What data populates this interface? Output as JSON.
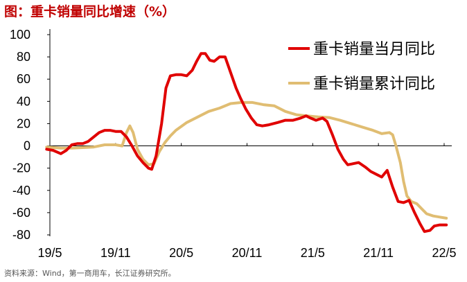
{
  "title": "图：重卡销量同比增速（%）",
  "source": "资料来源：Wind，第一商用车，长江证券研究所。",
  "chart_data": {
    "type": "line",
    "title": "图：重卡销量同比增速（%）",
    "xlabel": "",
    "ylabel": "",
    "ylim": [
      -80,
      100
    ],
    "yticks": [
      100,
      80,
      60,
      40,
      20,
      0,
      -20,
      -40,
      -60,
      -80
    ],
    "xlim": [
      0,
      36
    ],
    "xticks": [
      {
        "label": "19/5",
        "x": 0
      },
      {
        "label": "19/11",
        "x": 6
      },
      {
        "label": "20/5",
        "x": 12
      },
      {
        "label": "20/11",
        "x": 18
      },
      {
        "label": "21/5",
        "x": 24
      },
      {
        "label": "21/11",
        "x": 30
      },
      {
        "label": "22/5",
        "x": 36
      }
    ],
    "grid": false,
    "legend_position": "top-right",
    "series": [
      {
        "name": "重卡销量当月同比",
        "color": "#e00000",
        "points": [
          [
            -0.3,
            -3
          ],
          [
            0.3,
            -4
          ],
          [
            1,
            -7
          ],
          [
            1.5,
            -4
          ],
          [
            2,
            1
          ],
          [
            2.5,
            2
          ],
          [
            3,
            2
          ],
          [
            3.5,
            4
          ],
          [
            4,
            8
          ],
          [
            4.5,
            12
          ],
          [
            5,
            14
          ],
          [
            5.5,
            14
          ],
          [
            6,
            13
          ],
          [
            6.5,
            13
          ],
          [
            7,
            8
          ],
          [
            7.5,
            0
          ],
          [
            8,
            -9
          ],
          [
            8.5,
            -15
          ],
          [
            9,
            -20
          ],
          [
            9.3,
            -21
          ],
          [
            9.7,
            -9
          ],
          [
            10.2,
            20
          ],
          [
            10.6,
            52
          ],
          [
            11,
            63
          ],
          [
            11.5,
            64
          ],
          [
            12,
            64
          ],
          [
            12.5,
            63
          ],
          [
            13,
            68
          ],
          [
            13.4,
            76
          ],
          [
            13.8,
            83
          ],
          [
            14.2,
            83
          ],
          [
            14.6,
            77
          ],
          [
            15,
            76
          ],
          [
            15.5,
            80
          ],
          [
            16,
            80
          ],
          [
            16.5,
            66
          ],
          [
            17,
            52
          ],
          [
            17.4,
            43
          ],
          [
            17.9,
            33
          ],
          [
            18.4,
            25
          ],
          [
            18.9,
            19
          ],
          [
            19.4,
            18
          ],
          [
            20,
            19
          ],
          [
            20.8,
            21
          ],
          [
            21.5,
            23
          ],
          [
            22.2,
            23
          ],
          [
            22.9,
            25
          ],
          [
            23.4,
            27
          ],
          [
            23.8,
            25
          ],
          [
            24.3,
            23
          ],
          [
            24.9,
            25
          ],
          [
            25.3,
            22
          ],
          [
            25.8,
            10
          ],
          [
            26.3,
            -3
          ],
          [
            26.8,
            -12
          ],
          [
            27.2,
            -17
          ],
          [
            27.7,
            -16
          ],
          [
            28.2,
            -15
          ],
          [
            28.8,
            -19
          ],
          [
            29.3,
            -23
          ],
          [
            29.9,
            -26
          ],
          [
            30.3,
            -28
          ],
          [
            30.8,
            -22
          ],
          [
            31.3,
            -37
          ],
          [
            31.8,
            -50
          ],
          [
            32.3,
            -51
          ],
          [
            32.8,
            -49
          ],
          [
            33.3,
            -60
          ],
          [
            33.8,
            -70
          ],
          [
            34.2,
            -77
          ],
          [
            34.7,
            -76
          ],
          [
            35.1,
            -72
          ],
          [
            35.6,
            -71
          ],
          [
            36.2,
            -71
          ]
        ]
      },
      {
        "name": "重卡销量累计同比",
        "color": "#e0bd72",
        "points": [
          [
            -0.3,
            -1
          ],
          [
            1,
            -2
          ],
          [
            2,
            -2
          ],
          [
            3,
            -1.5
          ],
          [
            4,
            -1
          ],
          [
            5,
            1
          ],
          [
            6,
            1
          ],
          [
            6.6,
            0
          ],
          [
            7,
            12
          ],
          [
            7.3,
            18
          ],
          [
            7.6,
            12
          ],
          [
            8,
            -3
          ],
          [
            8.5,
            -12
          ],
          [
            9,
            -17
          ],
          [
            9.5,
            -16
          ],
          [
            10,
            -5
          ],
          [
            10.5,
            3
          ],
          [
            11,
            9
          ],
          [
            11.5,
            14
          ],
          [
            12.5,
            21
          ],
          [
            13.5,
            26
          ],
          [
            14.5,
            31
          ],
          [
            15.5,
            34
          ],
          [
            16.5,
            38
          ],
          [
            17.5,
            39
          ],
          [
            18.5,
            39
          ],
          [
            19.5,
            37
          ],
          [
            20.5,
            36
          ],
          [
            21.5,
            31
          ],
          [
            22.5,
            28
          ],
          [
            23.5,
            27
          ],
          [
            24.5,
            26
          ],
          [
            25.5,
            25.5
          ],
          [
            26.5,
            23
          ],
          [
            27.5,
            20
          ],
          [
            28.5,
            17
          ],
          [
            29.5,
            14
          ],
          [
            30.3,
            11
          ],
          [
            31,
            12
          ],
          [
            31.3,
            10
          ],
          [
            31.6,
            0
          ],
          [
            32,
            -15
          ],
          [
            32.3,
            -32
          ],
          [
            32.6,
            -45
          ],
          [
            33,
            -50
          ],
          [
            33.5,
            -52
          ],
          [
            34,
            -57
          ],
          [
            34.4,
            -61
          ],
          [
            35,
            -63
          ],
          [
            35.6,
            -64
          ],
          [
            36.2,
            -65
          ]
        ]
      }
    ]
  }
}
